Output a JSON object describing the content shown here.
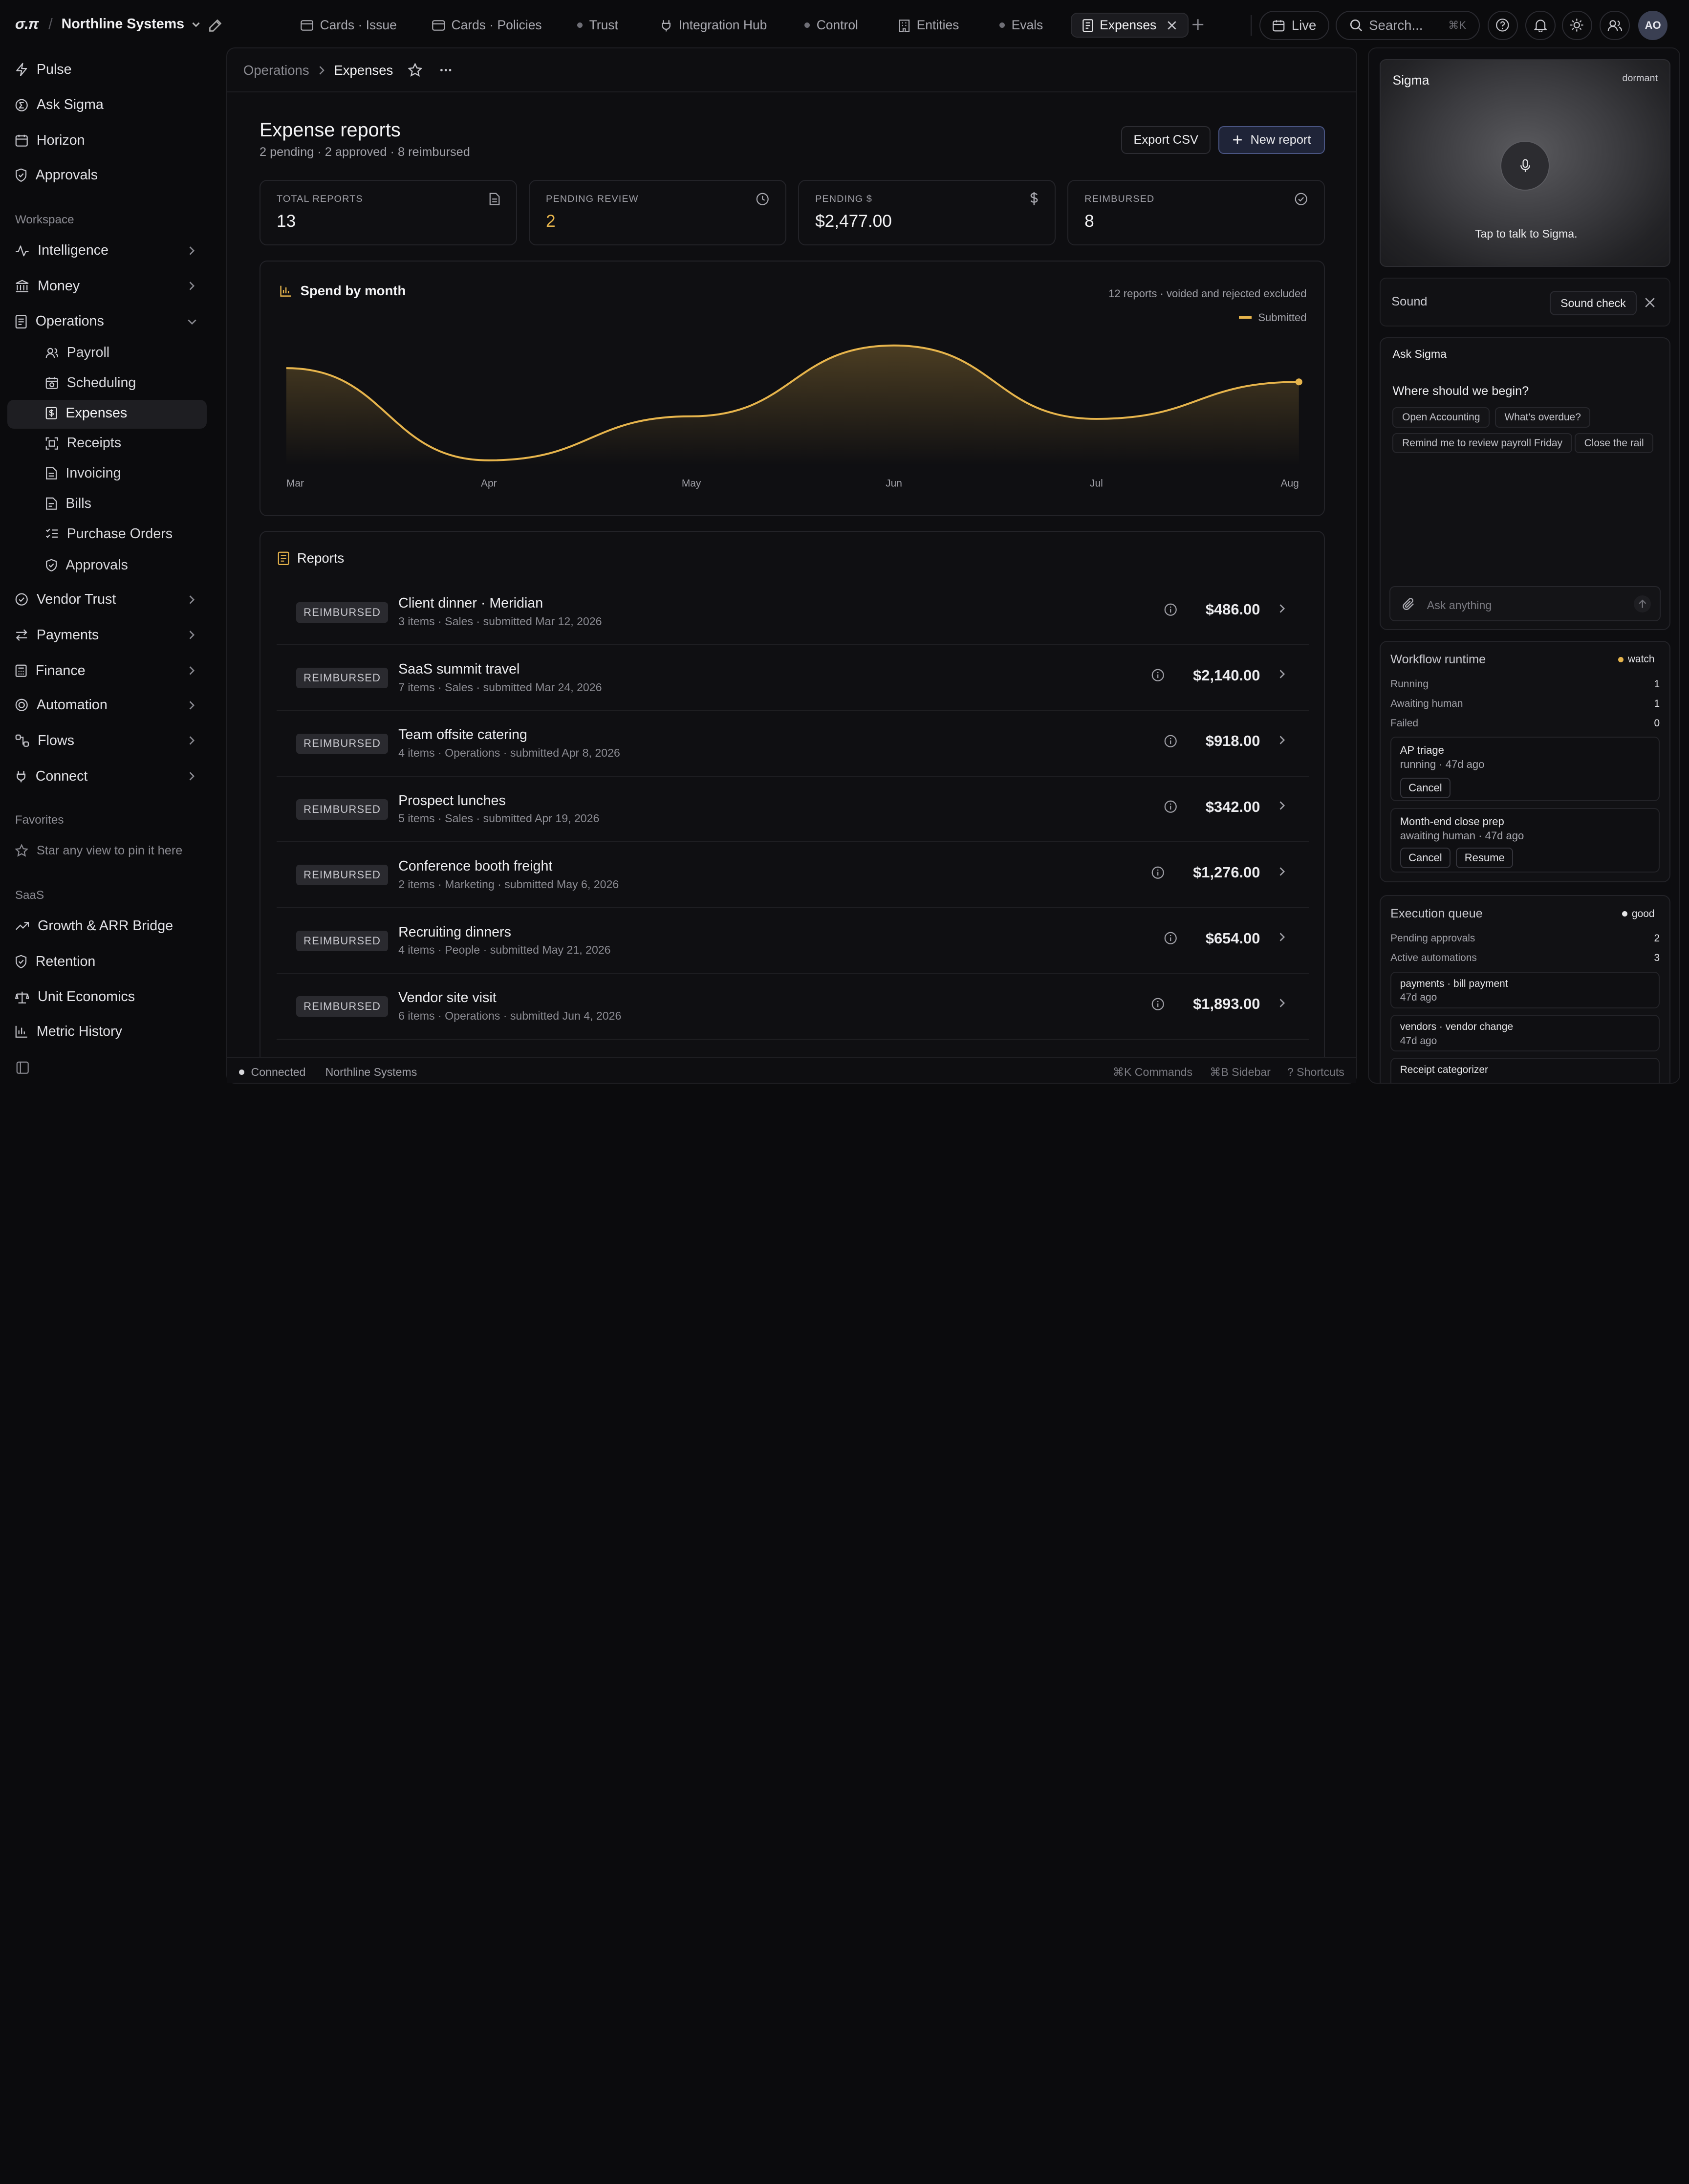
{
  "app": {
    "logo": "σ.π",
    "org": "Northline Systems"
  },
  "tabs": [
    {
      "label": "Cards · Issue",
      "icon": "card-icon"
    },
    {
      "label": "Cards · Policies",
      "icon": "card-icon"
    },
    {
      "label": "Trust",
      "icon": "dot"
    },
    {
      "label": "Integration Hub",
      "icon": "plug-icon"
    },
    {
      "label": "Control",
      "icon": "dot"
    },
    {
      "label": "Entities",
      "icon": "building-icon"
    },
    {
      "label": "Evals",
      "icon": "dot"
    },
    {
      "label": "Expenses",
      "icon": "receipt-icon",
      "active": true
    }
  ],
  "topbar": {
    "live_label": "Live",
    "search_placeholder": "Search...",
    "search_shortcut": "⌘K",
    "avatar": "AO"
  },
  "sidebar": {
    "top": [
      "Pulse",
      "Ask Sigma",
      "Horizon",
      "Approvals"
    ],
    "workspace_header": "Workspace",
    "workspace": [
      "Intelligence",
      "Money",
      "Operations"
    ],
    "operations_sub": [
      "Payroll",
      "Scheduling",
      "Expenses",
      "Receipts",
      "Invoicing",
      "Bills",
      "Purchase Orders",
      "Approvals"
    ],
    "workspace_more": [
      "Vendor Trust",
      "Payments",
      "Finance",
      "Automation",
      "Flows",
      "Connect"
    ],
    "favorites_header": "Favorites",
    "favorites_empty": "Star any view to pin it here",
    "saas_header": "SaaS",
    "saas": [
      "Growth & ARR Bridge",
      "Retention",
      "Unit Economics",
      "Metric History"
    ]
  },
  "breadcrumb": {
    "parent": "Operations",
    "current": "Expenses"
  },
  "page": {
    "title": "Expense reports",
    "subtitle": "2 pending · 2 approved · 8 reimbursed",
    "export_label": "Export CSV",
    "new_label": "New report"
  },
  "stats": [
    {
      "label": "TOTAL REPORTS",
      "value": "13",
      "icon": "document-icon",
      "accent": false
    },
    {
      "label": "PENDING REVIEW",
      "value": "2",
      "icon": "clock-icon",
      "accent": true
    },
    {
      "label": "PENDING $",
      "value": "$2,477.00",
      "icon": "dollar-icon",
      "accent": false
    },
    {
      "label": "REIMBURSED",
      "value": "8",
      "icon": "check-circle-icon",
      "accent": false
    }
  ],
  "chart_data": {
    "type": "area",
    "title": "Spend by month",
    "note": "12 reports · voided and rejected excluded",
    "categories": [
      "Mar",
      "Apr",
      "May",
      "Jun",
      "Jul",
      "Aug"
    ],
    "series": [
      {
        "name": "Submitted",
        "values": [
          2140,
          486,
          1276,
          2547,
          1230,
          1893
        ]
      }
    ],
    "ylim": [
      400,
      2700
    ],
    "grid": false,
    "legend": "top-right",
    "color": "#e6b44c"
  },
  "reports": {
    "header": "Reports",
    "rows": [
      {
        "status": "REIMBURSED",
        "title": "Client dinner · Meridian",
        "meta": "3 items · Sales · submitted Mar 12, 2026",
        "amount": "$486.00"
      },
      {
        "status": "REIMBURSED",
        "title": "SaaS summit travel",
        "meta": "7 items · Sales · submitted Mar 24, 2026",
        "amount": "$2,140.00"
      },
      {
        "status": "REIMBURSED",
        "title": "Team offsite catering",
        "meta": "4 items · Operations · submitted Apr 8, 2026",
        "amount": "$918.00"
      },
      {
        "status": "REIMBURSED",
        "title": "Prospect lunches",
        "meta": "5 items · Sales · submitted Apr 19, 2026",
        "amount": "$342.00"
      },
      {
        "status": "REIMBURSED",
        "title": "Conference booth freight",
        "meta": "2 items · Marketing · submitted May 6, 2026",
        "amount": "$1,276.00"
      },
      {
        "status": "REIMBURSED",
        "title": "Recruiting dinners",
        "meta": "4 items · People · submitted May 21, 2026",
        "amount": "$654.00"
      },
      {
        "status": "REIMBURSED",
        "title": "Vendor site visit",
        "meta": "6 items · Operations · submitted Jun 4, 2026",
        "amount": "$1,893.00"
      }
    ]
  },
  "statusbar": {
    "connected": "Connected",
    "org": "Northline Systems",
    "commands": "⌘K Commands",
    "sidebar": "⌘B Sidebar",
    "shortcuts": "? Shortcuts"
  },
  "sigma": {
    "title": "Sigma",
    "state": "dormant",
    "tap": "Tap to talk to Sigma."
  },
  "sound": {
    "label": "Sound",
    "check": "Sound check"
  },
  "ask": {
    "title": "Ask Sigma",
    "prompt": "Where should we begin?",
    "chips": [
      "Open Accounting",
      "What's overdue?",
      "Remind me to review payroll Friday",
      "Close the rail"
    ],
    "placeholder": "Ask anything"
  },
  "workflow": {
    "title": "Workflow runtime",
    "status": "watch",
    "status_color": "#e6b44c",
    "stats": [
      {
        "k": "Running",
        "v": "1"
      },
      {
        "k": "Awaiting human",
        "v": "1"
      },
      {
        "k": "Failed",
        "v": "0"
      }
    ],
    "jobs": [
      {
        "name": "AP triage",
        "meta": "running · 47d ago",
        "actions": [
          "Cancel"
        ]
      },
      {
        "name": "Month-end close prep",
        "meta": "awaiting human · 47d ago",
        "actions": [
          "Cancel",
          "Resume"
        ]
      }
    ]
  },
  "queue": {
    "title": "Execution queue",
    "status": "good",
    "status_color": "#e6e6e8",
    "stats": [
      {
        "k": "Pending approvals",
        "v": "2"
      },
      {
        "k": "Active automations",
        "v": "3"
      }
    ],
    "items": [
      {
        "name": "payments · bill payment",
        "meta": "47d ago"
      },
      {
        "name": "vendors · vendor change",
        "meta": "47d ago"
      },
      {
        "name": "Receipt categorizer",
        "meta": ""
      }
    ]
  }
}
